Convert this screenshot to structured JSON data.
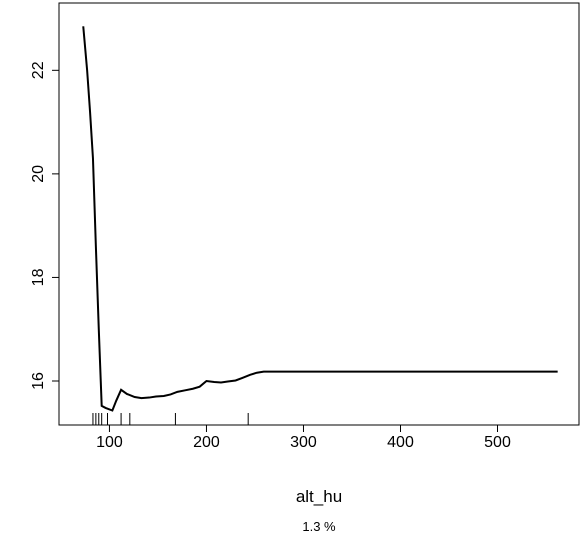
{
  "chart_data": {
    "type": "line",
    "title": "",
    "xlabel": "alt_hu",
    "ylabel": "",
    "note": "1.3 %",
    "xlim": [
      48,
      584
    ],
    "ylim": [
      15.15,
      23.3
    ],
    "x_ticks": [
      100,
      200,
      300,
      400,
      500
    ],
    "y_ticks": [
      16,
      18,
      20,
      22
    ],
    "grid": false,
    "series": [
      {
        "x": [
          73,
          77,
          80,
          83,
          86,
          89,
          92,
          96,
          103,
          107,
          112,
          118,
          126,
          133,
          141,
          148,
          156,
          163,
          170,
          178,
          186,
          193,
          200,
          208,
          215,
          222,
          230,
          237,
          245,
          252,
          259,
          267,
          300,
          350,
          400,
          450,
          500,
          562
        ],
        "y": [
          22.85,
          22.0,
          21.2,
          20.3,
          18.6,
          17.0,
          15.52,
          15.48,
          15.43,
          15.62,
          15.83,
          15.75,
          15.69,
          15.67,
          15.68,
          15.7,
          15.71,
          15.74,
          15.79,
          15.82,
          15.85,
          15.89,
          16.0,
          15.98,
          15.97,
          15.99,
          16.01,
          16.06,
          16.12,
          16.16,
          16.18,
          16.18,
          16.18,
          16.18,
          16.18,
          16.18,
          16.18,
          16.18
        ]
      }
    ],
    "rug": [
      83,
      86,
      89,
      92,
      98,
      112,
      121,
      168,
      243
    ]
  }
}
